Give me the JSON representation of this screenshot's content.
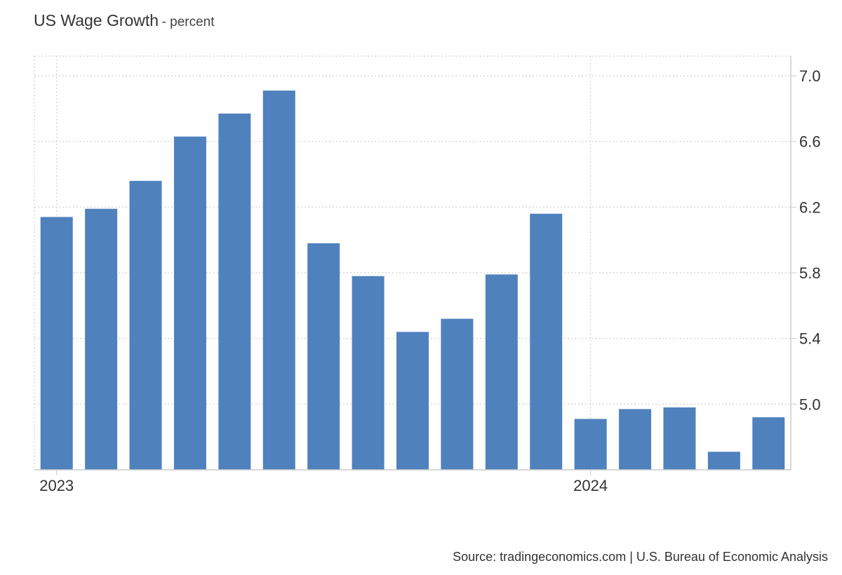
{
  "header": {
    "title": "US Wage Growth",
    "unit": "- percent"
  },
  "footer": {
    "source": "Source: tradingeconomics.com | U.S. Bureau of Economic Analysis"
  },
  "colors": {
    "bar": "#4f81bd",
    "grid": "#d9d9d9",
    "text": "#333333"
  },
  "chart_data": {
    "type": "bar",
    "title": "US Wage Growth",
    "ylabel": "percent",
    "xlabel": "",
    "values": [
      6.14,
      6.19,
      6.36,
      6.63,
      6.77,
      6.91,
      5.98,
      5.78,
      5.44,
      5.52,
      5.79,
      6.16,
      4.91,
      4.97,
      4.98,
      4.71,
      4.92
    ],
    "x_tick_labels": [
      {
        "label": "2023",
        "index": 0
      },
      {
        "label": "2024",
        "index": 12
      }
    ],
    "yticks": [
      "7.0",
      "6.6",
      "6.2",
      "5.8",
      "5.4",
      "5.0"
    ],
    "ylim": [
      4.6,
      7.12
    ],
    "grid": true,
    "y_axis_side": "right"
  }
}
